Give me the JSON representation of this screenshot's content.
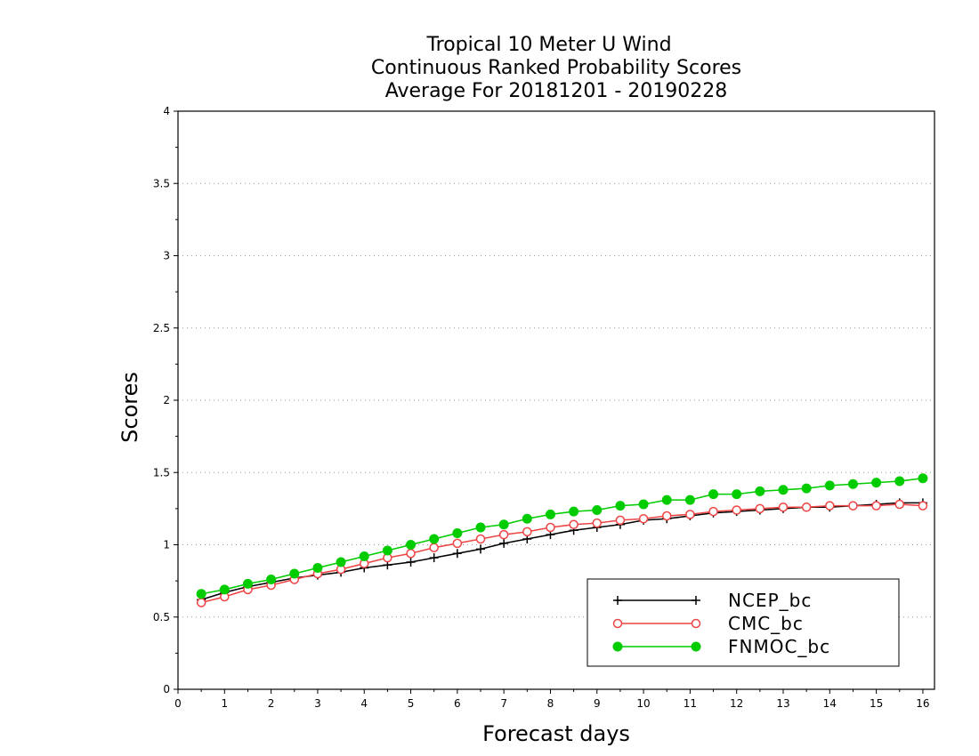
{
  "chart_data": {
    "type": "line",
    "title": [
      "Tropical 10 Meter U Wind",
      "Continuous Ranked Probability Scores",
      "Average For 20181201 - 20190228"
    ],
    "xlabel": "Forecast days",
    "ylabel": "Scores",
    "xlim": [
      0,
      16.25
    ],
    "ylim": [
      0,
      4
    ],
    "xticks": [
      "0",
      "1",
      "2",
      "3",
      "4",
      "5",
      "6",
      "7",
      "8",
      "9",
      "10",
      "11",
      "12",
      "13",
      "14",
      "15",
      "16"
    ],
    "yticks": [
      "0",
      "0.5",
      "1",
      "1.5",
      "2",
      "2.5",
      "3",
      "3.5",
      "4"
    ],
    "grid": "horizontal dotted",
    "legend_position": "bottom-right",
    "x": [
      0.5,
      1,
      1.5,
      2,
      2.5,
      3,
      3.5,
      4,
      4.5,
      5,
      5.5,
      6,
      6.5,
      7,
      7.5,
      8,
      8.5,
      9,
      9.5,
      10,
      10.5,
      11,
      11.5,
      12,
      12.5,
      13,
      13.5,
      14,
      14.5,
      15,
      15.5,
      16
    ],
    "series": [
      {
        "name": "NCEP_bc",
        "color": "#000000",
        "marker": "plus",
        "values": [
          0.62,
          0.67,
          0.71,
          0.74,
          0.77,
          0.79,
          0.81,
          0.84,
          0.86,
          0.88,
          0.91,
          0.94,
          0.97,
          1.01,
          1.04,
          1.07,
          1.1,
          1.12,
          1.14,
          1.17,
          1.18,
          1.2,
          1.22,
          1.23,
          1.24,
          1.25,
          1.26,
          1.26,
          1.27,
          1.28,
          1.29,
          1.29
        ]
      },
      {
        "name": "CMC_bc",
        "color": "#ee4444",
        "marker": "open-circle",
        "values": [
          0.6,
          0.64,
          0.69,
          0.72,
          0.76,
          0.8,
          0.83,
          0.87,
          0.91,
          0.94,
          0.98,
          1.01,
          1.04,
          1.07,
          1.09,
          1.12,
          1.14,
          1.15,
          1.17,
          1.18,
          1.2,
          1.21,
          1.23,
          1.24,
          1.25,
          1.26,
          1.26,
          1.27,
          1.27,
          1.27,
          1.28,
          1.27
        ]
      },
      {
        "name": "FNMOC_bc",
        "color": "#00cc00",
        "marker": "filled-circle",
        "values": [
          0.66,
          0.69,
          0.73,
          0.76,
          0.8,
          0.84,
          0.88,
          0.92,
          0.96,
          1.0,
          1.04,
          1.08,
          1.12,
          1.14,
          1.18,
          1.21,
          1.23,
          1.24,
          1.27,
          1.28,
          1.31,
          1.31,
          1.35,
          1.35,
          1.37,
          1.38,
          1.39,
          1.41,
          1.42,
          1.43,
          1.44,
          1.46
        ]
      }
    ]
  }
}
